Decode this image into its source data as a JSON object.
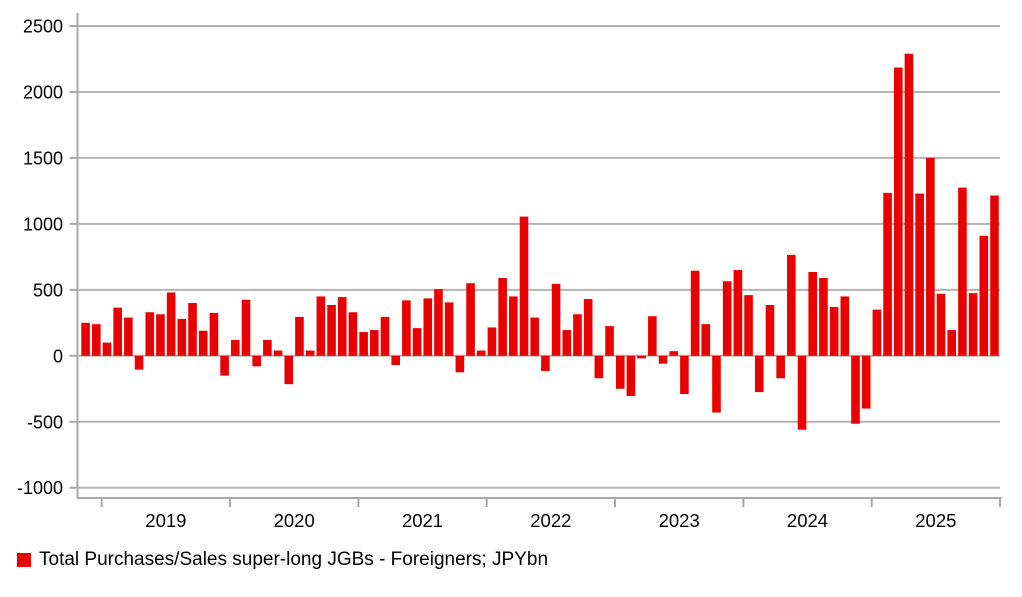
{
  "legend": {
    "label": "Total Purchases/Sales super-long JGBs - Foreigners; JPYbn",
    "marker_color": "#e90000"
  },
  "chart_data": {
    "type": "bar",
    "title": "",
    "xlabel": "",
    "ylabel": "",
    "series_name": "Total Purchases/Sales super-long JGBs - Foreigners; JPYbn",
    "unit": "JPYbn",
    "frequency": "monthly",
    "bar_color": "#e90000",
    "grid": true,
    "legend_position": "bottom-left",
    "ylim": [
      -1000,
      2500
    ],
    "yticks": [
      2500,
      2000,
      1500,
      1000,
      500,
      0,
      -500,
      -1000
    ],
    "xtick_year_labels": [
      "2019",
      "2020",
      "2021",
      "2022",
      "2023",
      "2024",
      "2025"
    ],
    "x": [
      "2018-11",
      "2018-12",
      "2019-01",
      "2019-02",
      "2019-03",
      "2019-04",
      "2019-05",
      "2019-06",
      "2019-07",
      "2019-08",
      "2019-09",
      "2019-10",
      "2019-11",
      "2019-12",
      "2020-01",
      "2020-02",
      "2020-03",
      "2020-04",
      "2020-05",
      "2020-06",
      "2020-07",
      "2020-08",
      "2020-09",
      "2020-10",
      "2020-11",
      "2020-12",
      "2021-01",
      "2021-02",
      "2021-03",
      "2021-04",
      "2021-05",
      "2021-06",
      "2021-07",
      "2021-08",
      "2021-09",
      "2021-10",
      "2021-11",
      "2021-12",
      "2022-01",
      "2022-02",
      "2022-03",
      "2022-04",
      "2022-05",
      "2022-06",
      "2022-07",
      "2022-08",
      "2022-09",
      "2022-10",
      "2022-11",
      "2022-12",
      "2023-01",
      "2023-02",
      "2023-03",
      "2023-04",
      "2023-05",
      "2023-06",
      "2023-07",
      "2023-08",
      "2023-09",
      "2023-10",
      "2023-11",
      "2023-12",
      "2024-01",
      "2024-02",
      "2024-03",
      "2024-04",
      "2024-05",
      "2024-06",
      "2024-07",
      "2024-08",
      "2024-09",
      "2024-10",
      "2024-11",
      "2024-12",
      "2025-01",
      "2025-02",
      "2025-03",
      "2025-04",
      "2025-05",
      "2025-06",
      "2025-07",
      "2025-08",
      "2025-09",
      "2025-10",
      "2025-11",
      "2025-12"
    ],
    "values": [
      250,
      240,
      100,
      365,
      290,
      -105,
      330,
      315,
      480,
      280,
      400,
      190,
      325,
      -150,
      120,
      425,
      -80,
      120,
      40,
      -215,
      295,
      40,
      450,
      385,
      445,
      330,
      180,
      195,
      295,
      -70,
      420,
      210,
      435,
      505,
      405,
      -125,
      550,
      40,
      215,
      590,
      450,
      1055,
      290,
      -115,
      545,
      195,
      315,
      430,
      -170,
      225,
      -250,
      -305,
      -20,
      300,
      -60,
      35,
      -290,
      645,
      240,
      -430,
      565,
      650,
      460,
      -275,
      385,
      -170,
      765,
      -560,
      635,
      590,
      370,
      450,
      -515,
      -400,
      350,
      1235,
      2185,
      2290,
      1230,
      1500,
      470,
      195,
      1275,
      475,
      910,
      1215
    ]
  },
  "style": {
    "gridline_color": "#b3b3b3",
    "axis_color": "#a9a9a9",
    "label_color": "#000000",
    "background_color": "#ffffff"
  }
}
